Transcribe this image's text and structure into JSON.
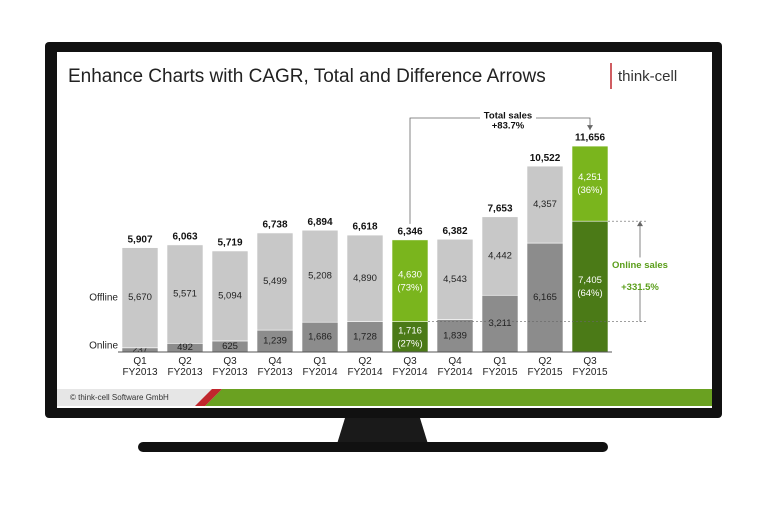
{
  "title": "Enhance Charts with CAGR, Total and Difference Arrows",
  "logo": "think-cell",
  "footer": "© think-cell Software GmbH",
  "chart_data": {
    "type": "stacked-bar",
    "categories": [
      "Q1 FY2013",
      "Q2 FY2013",
      "Q3 FY2013",
      "Q4 FY2013",
      "Q1 FY2014",
      "Q2 FY2014",
      "Q3 FY2014",
      "Q4 FY2014",
      "Q1 FY2015",
      "Q2 FY2015",
      "Q3 FY2015"
    ],
    "series": [
      {
        "name": "Online",
        "color": "#8c8c8c",
        "highlight_color": "#4b7a17",
        "values": [
          237,
          492,
          625,
          1239,
          1686,
          1728,
          1716,
          1839,
          3211,
          6165,
          7405
        ],
        "value_labels": [
          "237",
          "492",
          "625",
          "1,239",
          "1,686",
          "1,728",
          "1,716",
          "1,839",
          "3,211",
          "6,165",
          "7,405"
        ]
      },
      {
        "name": "Offline",
        "color": "#c8c8c8",
        "highlight_color": "#7ab51d",
        "values": [
          5670,
          5571,
          5094,
          5499,
          5208,
          4890,
          4630,
          4543,
          4442,
          4357,
          4251
        ],
        "value_labels": [
          "5,670",
          "5,571",
          "5,094",
          "5,499",
          "5,208",
          "4,890",
          "4,630",
          "4,543",
          "4,442",
          "4,357",
          "4,251"
        ]
      }
    ],
    "totals": [
      5907,
      6063,
      5719,
      6738,
      6894,
      6618,
      6346,
      6382,
      7653,
      10522,
      11656
    ],
    "total_labels": [
      "5,907",
      "6,063",
      "5,719",
      "6,738",
      "6,894",
      "6,618",
      "6,346",
      "6,382",
      "7,653",
      "10,522",
      "11,656"
    ],
    "highlight_categories": [
      6,
      10
    ],
    "shares": [
      {
        "series": 0,
        "index": 6,
        "value": 27,
        "label": "(27%)"
      },
      {
        "series": 1,
        "index": 6,
        "value": 73,
        "label": "(73%)"
      },
      {
        "series": 0,
        "index": 10,
        "value": 64,
        "label": "(64%)"
      },
      {
        "series": 1,
        "index": 10,
        "value": 36,
        "label": "(36%)"
      }
    ],
    "total_arrow": {
      "title": "Total sales",
      "value": 83.7,
      "label": "+83.7%"
    },
    "difference_arrow": {
      "title": "Online sales",
      "value": 331.5,
      "label": "+331.5%",
      "color": "#5a9e1a"
    },
    "ylim": [
      0,
      12000
    ]
  }
}
